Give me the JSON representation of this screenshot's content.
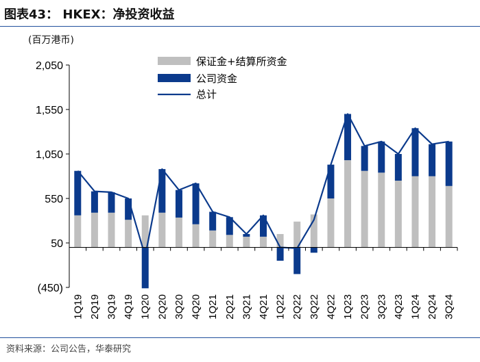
{
  "header": {
    "title": "图表43： HKEX：净投资收益"
  },
  "footer": {
    "source": "资料来源：公司公告，华泰研究"
  },
  "chart_data": {
    "type": "bar",
    "unit": "(百万港币)",
    "categories": [
      "1Q19",
      "2Q19",
      "3Q19",
      "4Q19",
      "1Q20",
      "2Q20",
      "3Q20",
      "4Q20",
      "1Q21",
      "2Q21",
      "3Q21",
      "4Q21",
      "1Q22",
      "2Q22",
      "3Q22",
      "4Q22",
      "1Q23",
      "2Q23",
      "3Q23",
      "4Q23",
      "1Q24",
      "2Q24",
      "3Q24"
    ],
    "series": [
      {
        "name": "保证金+结算所资金",
        "kind": "stacked-bar",
        "color": "#bfbfbf",
        "values": [
          360,
          390,
          390,
          310,
          360,
          390,
          335,
          260,
          190,
          140,
          120,
          120,
          150,
          290,
          370,
          550,
          980,
          860,
          840,
          750,
          800,
          800,
          690
        ]
      },
      {
        "name": "公司资金",
        "kind": "stacked-bar",
        "color": "#0b3a8c",
        "values": [
          500,
          240,
          230,
          240,
          -460,
          490,
          310,
          460,
          210,
          200,
          30,
          240,
          -150,
          -300,
          -60,
          380,
          520,
          280,
          350,
          300,
          540,
          360,
          500
        ]
      },
      {
        "name": "总计",
        "kind": "line",
        "color": "#0b3a8c",
        "values": [
          860,
          630,
          620,
          550,
          -100,
          880,
          645,
          720,
          400,
          340,
          150,
          360,
          0,
          -10,
          310,
          930,
          1500,
          1140,
          1190,
          1050,
          1340,
          1160,
          1190
        ]
      }
    ],
    "yticks": [
      "2,050",
      "1,550",
      "1,050",
      "550",
      "50",
      "(450)"
    ],
    "ylim": [
      -450,
      2050
    ],
    "legend_position": "top-center",
    "grid": false
  }
}
